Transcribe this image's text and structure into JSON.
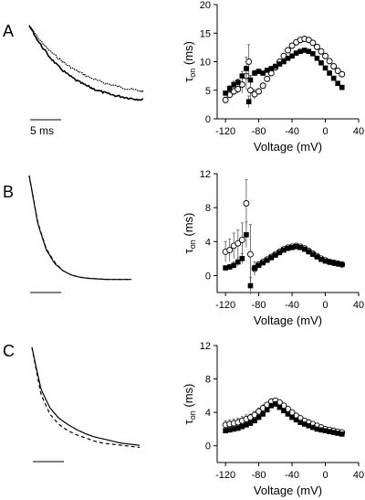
{
  "figure": {
    "panel_labels": [
      "A",
      "B",
      "C"
    ],
    "scale_bar_label": "5 ms",
    "colors": {
      "ink": "#000000",
      "open_fill": "#ffffff"
    }
  },
  "chart_data": [
    {
      "panel": "A",
      "type": "line",
      "name": "traces",
      "series": [
        {
          "style": "noisy-dotted",
          "values": [
            1.0,
            0.84,
            0.71,
            0.61,
            0.52,
            0.45,
            0.39,
            0.34,
            0.3,
            0.27,
            0.24,
            0.22,
            0.2
          ]
        },
        {
          "style": "noisy-solid",
          "values": [
            1.0,
            0.8,
            0.64,
            0.51,
            0.41,
            0.33,
            0.27,
            0.22,
            0.18,
            0.15,
            0.13,
            0.11,
            0.1
          ]
        }
      ]
    },
    {
      "panel": "A",
      "type": "scatter",
      "xlabel": "Voltage (mV)",
      "ylabel": "τon (ms)",
      "ylabel_main": "τ",
      "ylabel_sub": "on",
      "unit": "(ms)",
      "xlim": [
        -130,
        40
      ],
      "ylim": [
        0,
        20
      ],
      "xticks": [
        -120,
        -80,
        -40,
        0,
        40
      ],
      "yticks": [
        0,
        5,
        10,
        15,
        20
      ],
      "series": [
        {
          "marker": "filled-square",
          "x": [
            -120,
            -115,
            -110,
            -105,
            -100,
            -95,
            -92,
            -90,
            -85,
            -80,
            -75,
            -70,
            -65,
            -60,
            -55,
            -50,
            -45,
            -40,
            -35,
            -30,
            -25,
            -20,
            -15,
            -10,
            -5,
            0,
            5,
            10,
            15,
            20
          ],
          "y": [
            4.5,
            5.3,
            6.0,
            6.4,
            7.5,
            8.8,
            3.0,
            6.8,
            8.0,
            8.3,
            8.0,
            8.5,
            8.8,
            9.2,
            9.6,
            10.0,
            10.6,
            11.0,
            11.5,
            11.8,
            12.0,
            11.8,
            11.4,
            10.6,
            9.8,
            8.9,
            8.0,
            7.1,
            6.2,
            5.5
          ],
          "err": [
            0.4,
            0.5,
            0.6,
            0.6,
            0.8,
            2.0,
            1.0,
            0.8,
            0.5,
            0.4,
            0.3,
            0.3,
            0.3,
            0.3,
            0.3,
            0.3,
            0.3,
            0.3,
            0.3,
            0.3,
            0.3,
            0.3,
            0.3,
            0.3,
            0.3,
            0.3,
            0.3,
            0.3,
            0.3,
            0.3
          ]
        },
        {
          "marker": "open-circle",
          "x": [
            -120,
            -115,
            -110,
            -105,
            -100,
            -95,
            -92,
            -90,
            -85,
            -80,
            -75,
            -70,
            -65,
            -60,
            -55,
            -50,
            -45,
            -40,
            -35,
            -30,
            -25,
            -20,
            -15,
            -10,
            -5,
            0,
            5,
            10,
            15,
            20
          ],
          "y": [
            3.3,
            4.2,
            4.8,
            5.2,
            6.0,
            7.5,
            10.0,
            5.0,
            4.3,
            4.8,
            5.8,
            7.0,
            8.0,
            9.0,
            10.0,
            11.0,
            12.0,
            12.8,
            13.4,
            13.8,
            14.0,
            13.8,
            13.3,
            12.6,
            11.8,
            11.0,
            10.1,
            9.2,
            8.4,
            7.8
          ],
          "err": [
            0.5,
            0.6,
            0.7,
            0.8,
            1.5,
            2.5,
            3.0,
            1.8,
            0.8,
            0.5,
            0.4,
            0.3,
            0.3,
            0.3,
            0.3,
            0.3,
            0.3,
            0.3,
            0.3,
            0.3,
            0.3,
            0.3,
            0.3,
            0.3,
            0.3,
            0.3,
            0.3,
            0.3,
            0.3,
            0.3
          ]
        }
      ]
    },
    {
      "panel": "B",
      "type": "line",
      "name": "traces",
      "series": [
        {
          "style": "solid",
          "values": [
            1.0,
            0.55,
            0.3,
            0.17,
            0.1,
            0.06,
            0.04,
            0.03,
            0.025,
            0.02,
            0.02,
            0.02,
            0.02
          ]
        },
        {
          "style": "dashed",
          "values": [
            1.0,
            0.56,
            0.31,
            0.18,
            0.1,
            0.06,
            0.04,
            0.03,
            0.025,
            0.02,
            0.02,
            0.02,
            0.02
          ]
        }
      ]
    },
    {
      "panel": "B",
      "type": "scatter",
      "xlabel": "Voltage (mV)",
      "ylabel": "τon (ms)",
      "ylabel_main": "τ",
      "ylabel_sub": "on",
      "unit": "(ms)",
      "xlim": [
        -130,
        40
      ],
      "ylim": [
        -2,
        12
      ],
      "xticks": [
        -120,
        -80,
        -40,
        0,
        40
      ],
      "yticks": [
        0,
        4,
        8,
        12
      ],
      "series": [
        {
          "marker": "filled-square",
          "x": [
            -120,
            -115,
            -110,
            -105,
            -100,
            -95,
            -90,
            -85,
            -80,
            -75,
            -70,
            -65,
            -60,
            -55,
            -50,
            -45,
            -40,
            -35,
            -30,
            -25,
            -20,
            -15,
            -10,
            -5,
            0,
            5,
            10,
            15,
            20
          ],
          "y": [
            0.9,
            1.0,
            1.2,
            1.6,
            2.0,
            4.8,
            -1.2,
            0.9,
            1.2,
            1.5,
            1.8,
            2.1,
            2.4,
            2.7,
            3.0,
            3.2,
            3.3,
            3.4,
            3.3,
            3.1,
            2.8,
            2.5,
            2.2,
            1.9,
            1.7,
            1.6,
            1.5,
            1.4,
            1.3
          ],
          "err": [
            0.2,
            0.3,
            0.4,
            0.5,
            0.6,
            1.5,
            1.0,
            0.3,
            0.2,
            0.2,
            0.2,
            0.2,
            0.2,
            0.2,
            0.2,
            0.2,
            0.2,
            0.2,
            0.2,
            0.2,
            0.2,
            0.2,
            0.2,
            0.2,
            0.2,
            0.2,
            0.2,
            0.2,
            0.2
          ]
        },
        {
          "marker": "open-circle",
          "x": [
            -120,
            -115,
            -110,
            -105,
            -100,
            -95,
            -90,
            -85,
            -80,
            -75,
            -70,
            -65,
            -60,
            -55,
            -50,
            -45,
            -40,
            -35,
            -30,
            -25,
            -20,
            -15,
            -10,
            -5,
            0,
            5,
            10,
            15,
            20
          ],
          "y": [
            2.8,
            3.0,
            3.5,
            3.8,
            4.2,
            8.5,
            2.5,
            0.8,
            1.3,
            1.6,
            1.9,
            2.2,
            2.5,
            2.8,
            3.1,
            3.3,
            3.4,
            3.5,
            3.4,
            3.2,
            2.9,
            2.6,
            2.3,
            2.0,
            1.8,
            1.6,
            1.5,
            1.4,
            1.3
          ],
          "err": [
            1.2,
            1.3,
            1.5,
            1.6,
            2.0,
            2.8,
            3.5,
            0.8,
            0.3,
            0.2,
            0.2,
            0.2,
            0.2,
            0.2,
            0.2,
            0.2,
            0.2,
            0.2,
            0.2,
            0.2,
            0.2,
            0.2,
            0.2,
            0.2,
            0.2,
            0.2,
            0.2,
            0.2,
            0.2
          ]
        }
      ]
    },
    {
      "panel": "C",
      "type": "line",
      "name": "traces",
      "series": [
        {
          "style": "solid",
          "values": [
            1.0,
            0.6,
            0.42,
            0.32,
            0.26,
            0.21,
            0.17,
            0.14,
            0.12,
            0.1,
            0.08,
            0.07,
            0.06
          ]
        },
        {
          "style": "dashed",
          "values": [
            1.0,
            0.55,
            0.36,
            0.26,
            0.2,
            0.16,
            0.13,
            0.1,
            0.08,
            0.07,
            0.06,
            0.05,
            0.04
          ]
        }
      ]
    },
    {
      "panel": "C",
      "type": "scatter",
      "xlabel": "Voltage (mV)",
      "ylabel": "τon (ms)",
      "ylabel_main": "τ",
      "ylabel_sub": "on",
      "unit": "(ms)",
      "xlim": [
        -130,
        40
      ],
      "ylim": [
        -2,
        12
      ],
      "xticks": [
        -120,
        -80,
        -40,
        0,
        40
      ],
      "yticks": [
        0,
        4,
        8,
        12
      ],
      "series": [
        {
          "marker": "filled-square",
          "x": [
            -120,
            -115,
            -110,
            -105,
            -100,
            -95,
            -90,
            -85,
            -80,
            -75,
            -70,
            -65,
            -60,
            -55,
            -50,
            -45,
            -40,
            -35,
            -30,
            -25,
            -20,
            -15,
            -10,
            -5,
            0,
            5,
            10,
            15,
            20
          ],
          "y": [
            1.8,
            1.9,
            2.0,
            2.1,
            2.3,
            2.5,
            2.7,
            3.0,
            3.4,
            3.8,
            4.3,
            4.8,
            5.0,
            4.6,
            4.2,
            3.8,
            3.4,
            3.1,
            2.8,
            2.6,
            2.4,
            2.2,
            2.0,
            1.9,
            1.8,
            1.7,
            1.6,
            1.5,
            1.4
          ],
          "err": [
            0.3,
            0.3,
            0.3,
            0.3,
            0.3,
            0.3,
            0.3,
            0.3,
            0.3,
            0.3,
            0.3,
            0.3,
            0.3,
            0.2,
            0.2,
            0.2,
            0.2,
            0.2,
            0.2,
            0.2,
            0.2,
            0.2,
            0.2,
            0.2,
            0.2,
            0.2,
            0.2,
            0.2,
            0.2
          ]
        },
        {
          "marker": "open-circle",
          "x": [
            -120,
            -115,
            -110,
            -105,
            -100,
            -95,
            -90,
            -85,
            -80,
            -75,
            -70,
            -65,
            -60,
            -55,
            -50,
            -45,
            -40,
            -35,
            -30,
            -25,
            -20,
            -15,
            -10,
            -5,
            0,
            5,
            10,
            15,
            20
          ],
          "y": [
            2.5,
            2.6,
            2.7,
            2.8,
            3.0,
            3.2,
            3.4,
            3.7,
            4.1,
            4.5,
            4.9,
            5.3,
            5.4,
            5.2,
            4.8,
            4.4,
            4.0,
            3.6,
            3.3,
            3.0,
            2.8,
            2.6,
            2.4,
            2.2,
            2.0,
            1.9,
            1.8,
            1.7,
            1.6
          ],
          "err": [
            0.5,
            0.5,
            0.5,
            0.5,
            0.5,
            0.5,
            0.4,
            0.4,
            0.4,
            0.4,
            0.3,
            0.3,
            0.3,
            0.3,
            0.3,
            0.3,
            0.3,
            0.3,
            0.3,
            0.3,
            0.2,
            0.2,
            0.2,
            0.2,
            0.2,
            0.2,
            0.2,
            0.2,
            0.2
          ]
        }
      ]
    }
  ]
}
